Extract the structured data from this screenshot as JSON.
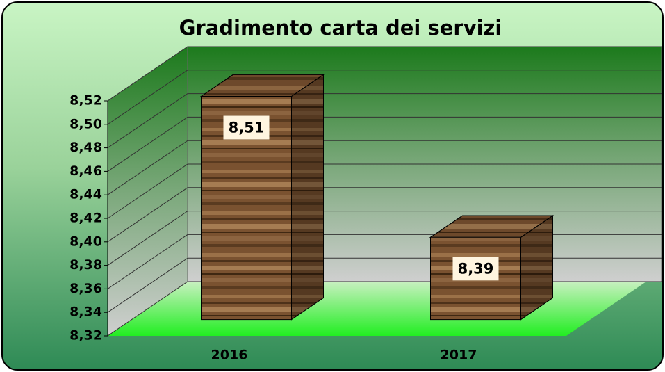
{
  "chart_data": {
    "type": "bar3d",
    "title": "Gradimento carta dei servizi",
    "categories": [
      "2016",
      "2017"
    ],
    "values": [
      8.51,
      8.39
    ],
    "value_labels": [
      "8,51",
      "8,39"
    ],
    "ylim": [
      8.32,
      8.52
    ],
    "yticks": [
      {
        "value": 8.32,
        "label": "8,32"
      },
      {
        "value": 8.34,
        "label": "8,34"
      },
      {
        "value": 8.36,
        "label": "8,36"
      },
      {
        "value": 8.38,
        "label": "8,38"
      },
      {
        "value": 8.4,
        "label": "8,40"
      },
      {
        "value": 8.42,
        "label": "8,42"
      },
      {
        "value": 8.44,
        "label": "8,44"
      },
      {
        "value": 8.46,
        "label": "8,46"
      },
      {
        "value": 8.48,
        "label": "8,48"
      },
      {
        "value": 8.5,
        "label": "8,50"
      },
      {
        "value": 8.52,
        "label": "8,52"
      }
    ],
    "grid": true
  }
}
